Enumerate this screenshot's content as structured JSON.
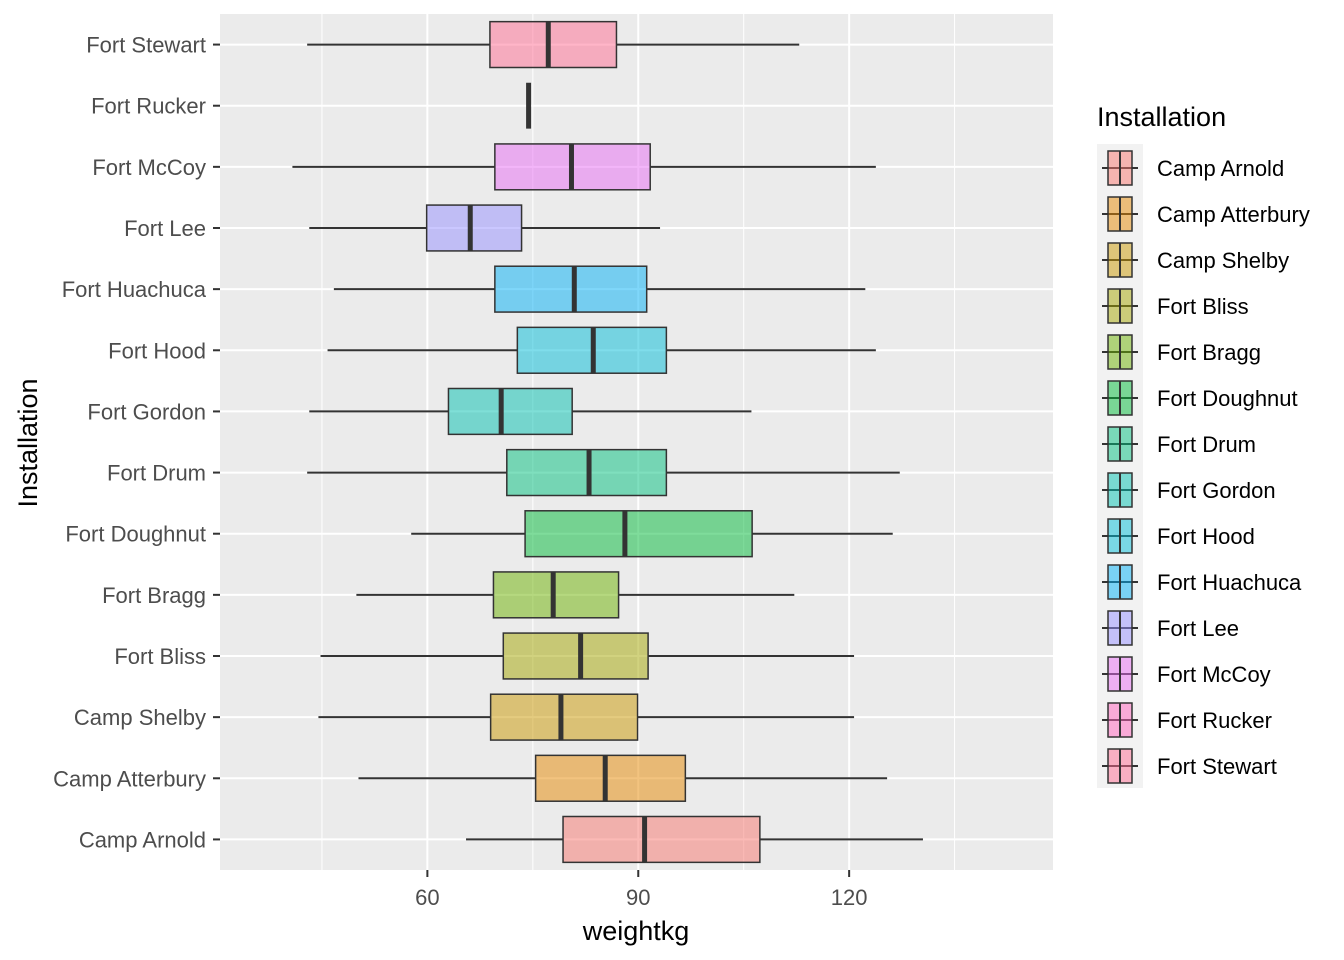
{
  "chart_data": {
    "type": "boxplot",
    "orientation": "horizontal",
    "xlabel": "weightkg",
    "ylabel": "Installation",
    "xlim": [
      30.5,
      149.0
    ],
    "x_ticks": [
      60,
      90,
      120
    ],
    "grid": true,
    "legend": {
      "title": "Installation",
      "placement": "right",
      "entries": [
        "Camp Arnold",
        "Camp Atterbury",
        "Camp Shelby",
        "Fort Bliss",
        "Fort Bragg",
        "Fort Doughnut",
        "Fort Drum",
        "Fort Gordon",
        "Fort Hood",
        "Fort Huachuca",
        "Fort Lee",
        "Fort McCoy",
        "Fort Rucker",
        "Fort Stewart"
      ]
    },
    "categories": [
      "Camp Arnold",
      "Camp Atterbury",
      "Camp Shelby",
      "Fort Bliss",
      "Fort Bragg",
      "Fort Doughnut",
      "Fort Drum",
      "Fort Gordon",
      "Fort Hood",
      "Fort Huachuca",
      "Fort Lee",
      "Fort McCoy",
      "Fort Rucker",
      "Fort Stewart"
    ],
    "series": [
      {
        "name": "Camp Arnold",
        "color": "#F8766D",
        "min": 65.5,
        "q1": 79.3,
        "median": 90.9,
        "q3": 107.3,
        "max": 130.5
      },
      {
        "name": "Camp Atterbury",
        "color": "#E58700",
        "min": 50.2,
        "q1": 75.4,
        "median": 85.3,
        "q3": 96.7,
        "max": 125.4
      },
      {
        "name": "Camp Shelby",
        "color": "#C99800",
        "min": 44.5,
        "q1": 69.0,
        "median": 79.0,
        "q3": 89.9,
        "max": 120.7
      },
      {
        "name": "Fort Bliss",
        "color": "#A3A500",
        "min": 44.8,
        "q1": 70.8,
        "median": 81.8,
        "q3": 91.4,
        "max": 120.7
      },
      {
        "name": "Fort Bragg",
        "color": "#6BB100",
        "min": 49.9,
        "q1": 69.4,
        "median": 77.9,
        "q3": 87.2,
        "max": 112.2
      },
      {
        "name": "Fort Doughnut",
        "color": "#00BA38",
        "min": 57.7,
        "q1": 73.9,
        "median": 88.1,
        "q3": 106.2,
        "max": 126.2
      },
      {
        "name": "Fort Drum",
        "color": "#00BF7D",
        "min": 42.9,
        "q1": 71.3,
        "median": 83.0,
        "q3": 94.0,
        "max": 127.2
      },
      {
        "name": "Fort Gordon",
        "color": "#00C0AF",
        "min": 43.2,
        "q1": 63.0,
        "median": 70.5,
        "q3": 80.6,
        "max": 106.1
      },
      {
        "name": "Fort Hood",
        "color": "#00BCD8",
        "min": 45.8,
        "q1": 72.8,
        "median": 83.6,
        "q3": 94.0,
        "max": 123.8
      },
      {
        "name": "Fort Huachuca",
        "color": "#00B0F6",
        "min": 46.7,
        "q1": 69.6,
        "median": 80.9,
        "q3": 91.2,
        "max": 122.3
      },
      {
        "name": "Fort Lee",
        "color": "#9590FF",
        "min": 43.2,
        "q1": 59.9,
        "median": 66.1,
        "q3": 73.4,
        "max": 93.1
      },
      {
        "name": "Fort McCoy",
        "color": "#E76BF3",
        "min": 40.8,
        "q1": 69.6,
        "median": 80.5,
        "q3": 91.7,
        "max": 123.8
      },
      {
        "name": "Fort Rucker",
        "color": "#FF62BC",
        "min": 74.4,
        "q1": 74.4,
        "median": 74.4,
        "q3": 74.4,
        "max": 74.4
      },
      {
        "name": "Fort Stewart",
        "color": "#FF6C91",
        "min": 42.9,
        "q1": 68.9,
        "median": 77.2,
        "q3": 86.9,
        "max": 112.9
      }
    ]
  }
}
